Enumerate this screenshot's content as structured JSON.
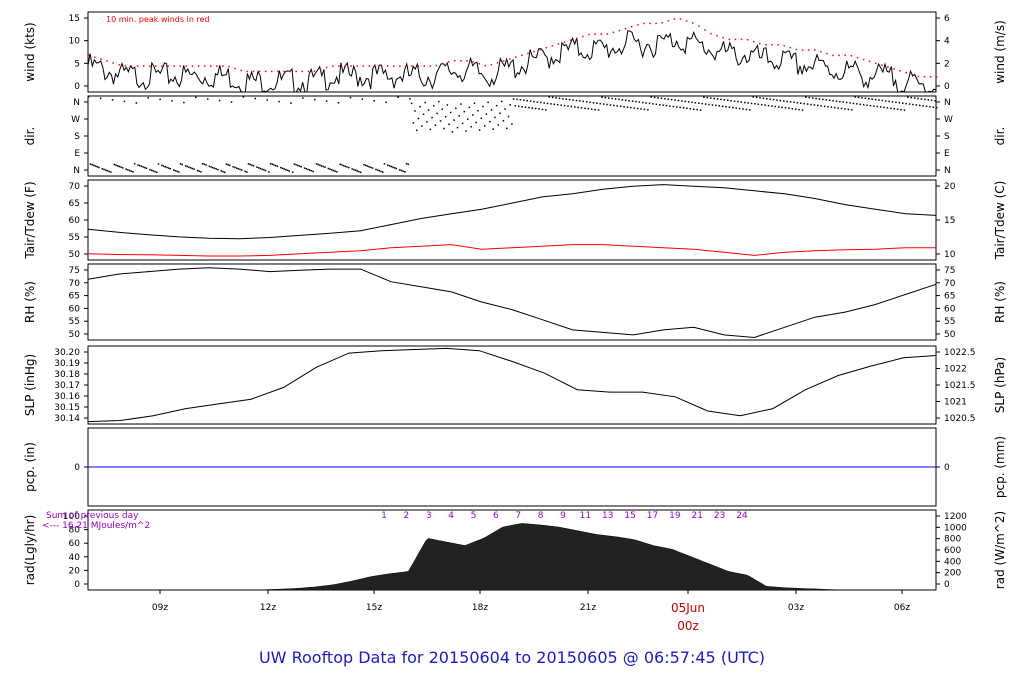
{
  "colors": {
    "black": "#000000",
    "red": "#ff0000",
    "blue": "#0000ff",
    "purple": "#9900cc",
    "title_blue": "#1a1acc",
    "dark_red": "#cc0000"
  },
  "footer": {
    "text": "UW Rooftop Data for 20150604  to  20150605 @ 06:57:45  (UTC)"
  },
  "chart_data": {
    "type": "line",
    "x": {
      "ticks": [
        "09z",
        "12z",
        "15z",
        "18z",
        "21z",
        "00z",
        "03z",
        "06z"
      ],
      "date_label": "05Jun",
      "date_tick": "00z"
    },
    "panels": [
      {
        "id": "wind",
        "ylabel_left": "wind (kts)",
        "ylabel_right": "wind (m/s)",
        "left_ticks": [
          "0",
          "5",
          "10",
          "15"
        ],
        "right_ticks": [
          "0",
          "2",
          "4",
          "6"
        ],
        "annotation": "10 min. peak winds in red",
        "ylim": [
          0,
          15
        ],
        "series": [
          {
            "values": [
              5,
              4,
              3,
              3,
              3,
              3,
              3,
              3,
              3,
              2,
              2,
              2,
              2,
              2,
              3,
              3,
              3,
              3,
              3,
              3,
              3,
              4,
              4,
              3,
              4,
              5,
              6,
              7,
              8,
              8,
              8,
              9,
              9,
              9,
              10,
              9,
              8,
              7,
              7,
              6,
              6,
              5,
              5,
              4,
              4,
              3,
              3,
              2,
              1,
              1
            ],
            "color": "#000000"
          },
          {
            "values": [
              7,
              6,
              5,
              5,
              5,
              5,
              5,
              5,
              5,
              4,
              4,
              4,
              4,
              4,
              5,
              5,
              5,
              5,
              5,
              5,
              5,
              6,
              6,
              5,
              6,
              7,
              8,
              9,
              10,
              11,
              11,
              12,
              13,
              13,
              14,
              13,
              11,
              10,
              10,
              9,
              9,
              8,
              8,
              7,
              7,
              6,
              5,
              4,
              3,
              3
            ],
            "color": "#ff0000"
          }
        ]
      },
      {
        "id": "dir",
        "ylabel_left": "dir.",
        "ylabel_right": "dir.",
        "left_ticks": [
          "N",
          "E",
          "S",
          "W",
          "N"
        ],
        "right_ticks": [
          "N",
          "E",
          "S",
          "W",
          "N"
        ],
        "ylim": [
          0,
          360
        ],
        "series": []
      },
      {
        "id": "temp",
        "ylabel_left": "Tair/Tdew (F)",
        "ylabel_right": "Tair/Tdew (C)",
        "left_ticks": [
          "50",
          "55",
          "60",
          "65",
          "70"
        ],
        "right_ticks": [
          "10",
          "15",
          "20"
        ],
        "ylim": [
          46.5,
          72.5
        ],
        "series": [
          {
            "name": "",
            "values": [
              56.5,
              55.5,
              54.7,
              54.0,
              53.6,
              53.4,
              53.8,
              54.5,
              55.2,
              56.0,
              58.0,
              60.0,
              61.5,
              63.0,
              65.0,
              67.0,
              68.0,
              69.5,
              70.5,
              71.0,
              70.5,
              70.0,
              69.0,
              68.0,
              66.5,
              64.5,
              63.0,
              61.5,
              61.0
            ],
            "color": "#000000"
          },
          {
            "name": "",
            "values": [
              48.5,
              48.3,
              48.2,
              48.0,
              47.8,
              47.8,
              48.0,
              48.5,
              49.0,
              49.5,
              50.5,
              51.0,
              51.5,
              50.0,
              50.5,
              51.0,
              51.5,
              51.5,
              51.0,
              50.5,
              50.0,
              49.0,
              48.0,
              49.0,
              49.5,
              49.8,
              50.0,
              50.5,
              50.5
            ],
            "color": "#ff0000"
          }
        ]
      },
      {
        "id": "rh",
        "ylabel_left": "RH (%)",
        "ylabel_right": "RH (%)",
        "left_ticks": [
          "50",
          "55",
          "60",
          "65",
          "70",
          "75"
        ],
        "right_ticks": [
          "50",
          "55",
          "60",
          "65",
          "70",
          "75"
        ],
        "ylim": [
          47,
          77
        ],
        "series": [
          {
            "name": "",
            "values": [
              71,
              73,
              74,
              75,
              75.5,
              75,
              74,
              74.5,
              75,
              75,
              70,
              68,
              66,
              62,
              59,
              55,
              51,
              50,
              49,
              51,
              52,
              49,
              48,
              52,
              56,
              58,
              61,
              65,
              69
            ],
            "color": "#000000"
          }
        ]
      },
      {
        "id": "slp",
        "ylabel_left": "SLP (inHg)",
        "ylabel_right": "SLP (hPa)",
        "left_ticks": [
          "30.14",
          "30.15",
          "30.16",
          "30.17",
          "30.18",
          "30.19",
          "30.20"
        ],
        "right_ticks": [
          "1020.5",
          "1021",
          "1021.5",
          "1022",
          "1022.5"
        ],
        "ylim": [
          30.137,
          30.203
        ],
        "series": [
          {
            "name": "",
            "values": [
              30.139,
              30.14,
              30.144,
              30.15,
              30.154,
              30.158,
              30.168,
              30.185,
              30.197,
              30.199,
              30.2,
              30.201,
              30.199,
              30.19,
              30.18,
              30.166,
              30.164,
              30.164,
              30.16,
              30.148,
              30.144,
              30.15,
              30.166,
              30.178,
              30.186,
              30.193,
              30.195
            ],
            "color": "#000000"
          }
        ]
      },
      {
        "id": "pcp",
        "ylabel_left": "pcp. (in)",
        "ylabel_right": "pcp. (mm)",
        "left_ticks": [
          "0"
        ],
        "right_ticks": [
          "0"
        ],
        "ylim": [
          -1,
          1
        ],
        "series": [
          {
            "name": "",
            "values": [
              0,
              0
            ],
            "color": "#0000ff"
          }
        ]
      },
      {
        "id": "rad",
        "ylabel_left": "rad(Lgly/hr)",
        "ylabel_right": "rad (W/m^2)",
        "left_ticks": [
          "0",
          "20",
          "40",
          "60",
          "80",
          "100"
        ],
        "right_ticks": [
          "0",
          "200",
          "400",
          "600",
          "800",
          "1000",
          "1200"
        ],
        "ylim": [
          0,
          100
        ],
        "annotations": [
          "Sum of previous day",
          "<--- 16.21 MJoules/m^2"
        ],
        "hour_markers": [
          "1",
          "2",
          "3",
          "4",
          "5",
          "6",
          "7",
          "8",
          "9",
          "11",
          "13",
          "15",
          "17",
          "19",
          "21",
          "23",
          "24"
        ],
        "series": [
          {
            "name": "",
            "values": [
              0,
              0,
              0,
              0,
              0,
              0,
              0,
              0,
              0,
              0,
              1,
              2,
              4,
              7,
              12,
              18,
              22,
              25,
              70,
              65,
              60,
              70,
              85,
              90,
              88,
              85,
              80,
              75,
              72,
              68,
              60,
              55,
              45,
              35,
              25,
              20,
              5,
              3,
              2,
              1,
              0,
              0,
              0,
              0,
              0,
              0
            ],
            "color": "#000000"
          }
        ]
      }
    ]
  }
}
